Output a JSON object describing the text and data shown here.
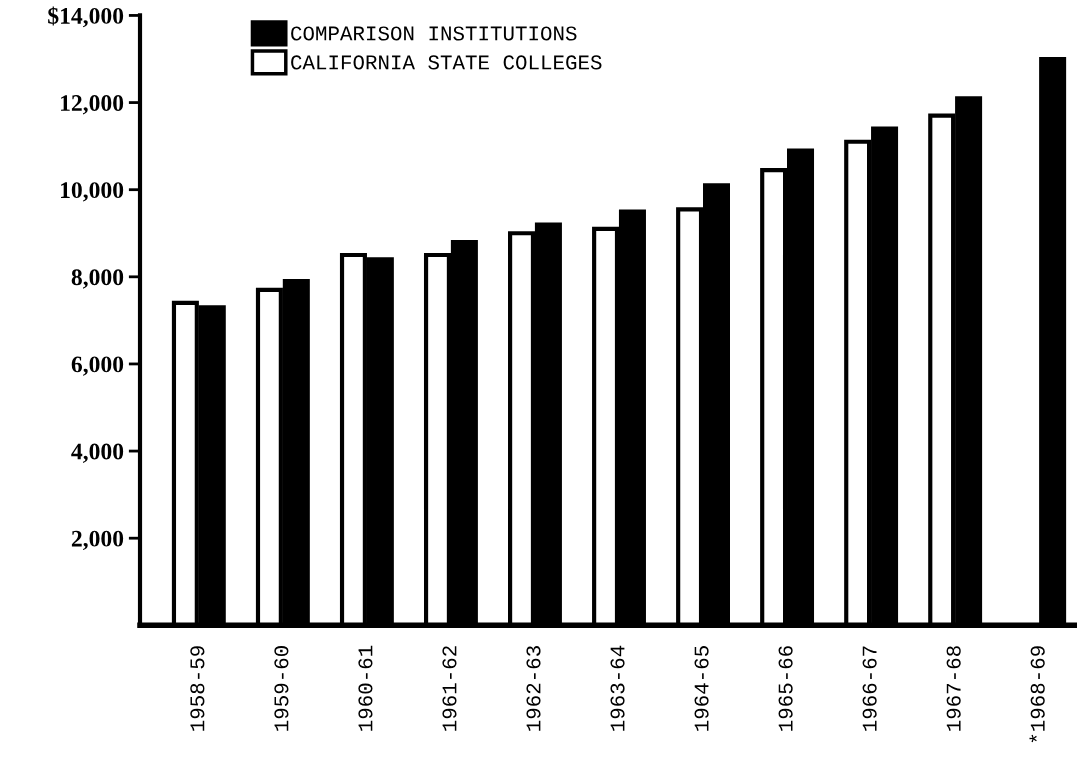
{
  "chart_data": {
    "type": "bar",
    "categories": [
      "1958-59",
      "1959-60",
      "1960-61",
      "1961-62",
      "1962-63",
      "1963-64",
      "1964-65",
      "1965-66",
      "1966-67",
      "1967-68",
      "*1968-69"
    ],
    "series": [
      {
        "name": "CALIFORNIA STATE COLLEGES",
        "color": "#ffffff",
        "values": [
          7400,
          7700,
          8500,
          8500,
          9000,
          9100,
          9550,
          10450,
          11100,
          11700,
          null
        ]
      },
      {
        "name": "COMPARISON INSTITUTIONS",
        "color": "#000000",
        "values": [
          7300,
          7900,
          8400,
          8800,
          9200,
          9500,
          10100,
          10900,
          11400,
          12100,
          13000
        ]
      }
    ],
    "ylim": [
      0,
      14000
    ],
    "yticks": [
      {
        "value": 2000,
        "label": "2,000"
      },
      {
        "value": 4000,
        "label": "4,000"
      },
      {
        "value": 6000,
        "label": "6,000"
      },
      {
        "value": 8000,
        "label": "8,000"
      },
      {
        "value": 10000,
        "label": "10,000"
      },
      {
        "value": 12000,
        "label": "12,000"
      },
      {
        "value": 14000,
        "label": "$14,000"
      }
    ],
    "grid": false,
    "legend": "top left"
  }
}
